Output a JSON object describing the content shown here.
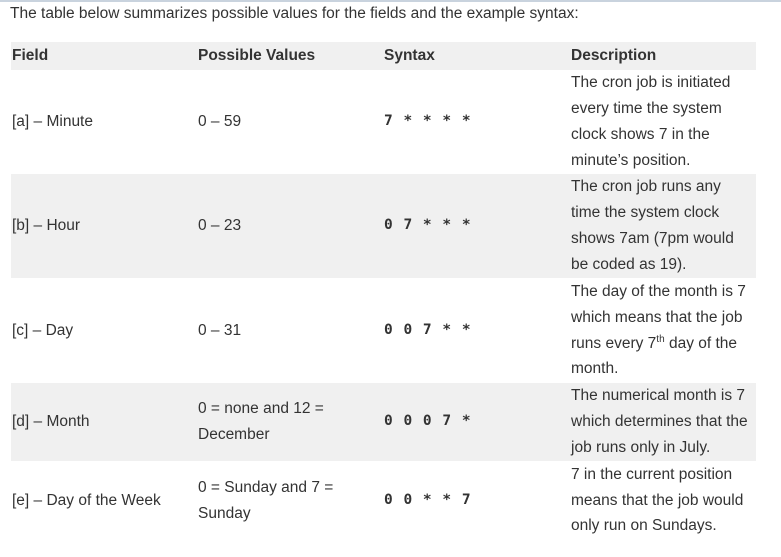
{
  "intro": "The table below summarizes possible values for the fields and the example syntax:",
  "headers": [
    "Field",
    "Possible Values",
    "Syntax",
    "Description"
  ],
  "rows": [
    {
      "field": "[a] – Minute",
      "values": "0 – 59",
      "syntax": "7 * * * *",
      "desc_a": "The cron job is initiated every time the system clock shows 7 in the minute’s position."
    },
    {
      "field": "[b] – Hour",
      "values": "0 – 23",
      "syntax": "0 7 * * *",
      "desc_a": "The cron job runs any time the system clock shows 7am (7pm would be coded as 19)."
    },
    {
      "field": "[c] – Day",
      "values": "0 – 31",
      "syntax": "0 0 7 * *",
      "desc_a": "The day of the month is 7 which means that the job runs every 7",
      "desc_sup": "th",
      "desc_b": " day of the month."
    },
    {
      "field": "[d] – Month",
      "values": "0 = none and 12 = December",
      "syntax": "0 0 0 7 *",
      "desc_a": "The numerical month is 7 which determines that the job runs only in July."
    },
    {
      "field": "[e] – Day of the Week",
      "values": "0 = Sunday and 7 = Sunday",
      "syntax": "0 0 * * 7",
      "desc_a": "7 in the current position means that the job would only run on Sundays."
    }
  ]
}
